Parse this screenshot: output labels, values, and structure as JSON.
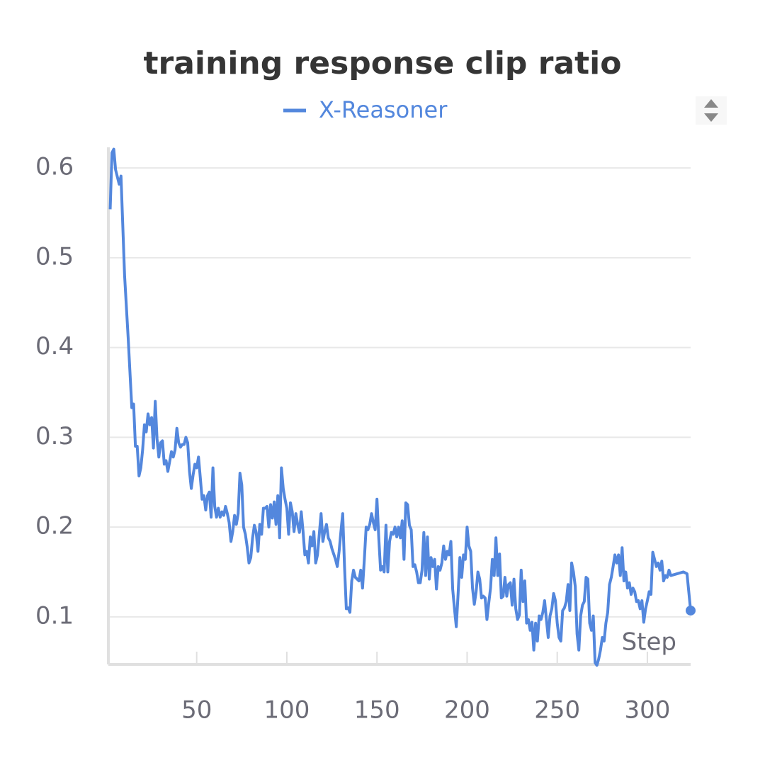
{
  "chart_data": {
    "type": "line",
    "title": "training response clip ratio",
    "x_label": "Step",
    "x": [
      2,
      3,
      4,
      5,
      6,
      7,
      8,
      10,
      12,
      14,
      15,
      16,
      17,
      18,
      19,
      20,
      21,
      22,
      23,
      24,
      25,
      26,
      27,
      28,
      29,
      30,
      31,
      32,
      33,
      34,
      35,
      36,
      37,
      38,
      39,
      40,
      41,
      42,
      43,
      44,
      45,
      46,
      47,
      48,
      49,
      50,
      51,
      52,
      53,
      54,
      55,
      56,
      57,
      58,
      59,
      60,
      61,
      62,
      63,
      64,
      65,
      66,
      67,
      68,
      69,
      70,
      71,
      72,
      73,
      74,
      75,
      76,
      77,
      78,
      79,
      80,
      81,
      82,
      83,
      84,
      85,
      86,
      87,
      88,
      89,
      90,
      91,
      92,
      93,
      94,
      95,
      96,
      97,
      98,
      99,
      100,
      101,
      102,
      103,
      104,
      105,
      106,
      107,
      108,
      109,
      110,
      111,
      112,
      113,
      114,
      115,
      116,
      117,
      118,
      119,
      120,
      121,
      122,
      123,
      124,
      125,
      126,
      127,
      128,
      129,
      130,
      131,
      132,
      133,
      134,
      135,
      136,
      137,
      138,
      139,
      140,
      141,
      142,
      143,
      144,
      145,
      146,
      147,
      148,
      149,
      150,
      151,
      152,
      153,
      154,
      155,
      156,
      157,
      158,
      159,
      160,
      161,
      162,
      163,
      164,
      165,
      166,
      167,
      168,
      169,
      170,
      171,
      172,
      173,
      174,
      175,
      176,
      177,
      178,
      179,
      180,
      181,
      182,
      183,
      184,
      185,
      186,
      187,
      188,
      189,
      190,
      191,
      192,
      193,
      194,
      195,
      196,
      197,
      198,
      199,
      200,
      201,
      202,
      203,
      204,
      205,
      206,
      207,
      208,
      209,
      210,
      211,
      212,
      213,
      214,
      215,
      216,
      217,
      218,
      219,
      220,
      221,
      222,
      223,
      224,
      225,
      226,
      227,
      228,
      229,
      230,
      231,
      232,
      233,
      234,
      235,
      236,
      237,
      238,
      239,
      240,
      241,
      242,
      243,
      244,
      245,
      246,
      247,
      248,
      249,
      250,
      251,
      252,
      253,
      254,
      255,
      256,
      257,
      258,
      259,
      260,
      261,
      262,
      263,
      264,
      265,
      266,
      267,
      268,
      269,
      270,
      271,
      272,
      273,
      274,
      275,
      276,
      277,
      278,
      279,
      280,
      281,
      282,
      283,
      284,
      285,
      286,
      287,
      288,
      289,
      290,
      291,
      292,
      293,
      294,
      295,
      296,
      297,
      298,
      299,
      300,
      301,
      302,
      303,
      304,
      305,
      306,
      307,
      308,
      309,
      310,
      311,
      312,
      313,
      320,
      322,
      324
    ],
    "series": [
      {
        "name": "X-Reasoner",
        "color": "#5387dd",
        "values": [
          0.554,
          0.617,
          0.621,
          0.598,
          0.59,
          0.582,
          0.591,
          0.48,
          0.41,
          0.333,
          0.337,
          0.29,
          0.29,
          0.257,
          0.266,
          0.286,
          0.314,
          0.306,
          0.326,
          0.314,
          0.322,
          0.288,
          0.34,
          0.298,
          0.278,
          0.294,
          0.296,
          0.27,
          0.274,
          0.262,
          0.273,
          0.284,
          0.278,
          0.286,
          0.31,
          0.294,
          0.289,
          0.292,
          0.292,
          0.3,
          0.294,
          0.262,
          0.243,
          0.258,
          0.27,
          0.266,
          0.278,
          0.255,
          0.231,
          0.235,
          0.219,
          0.235,
          0.239,
          0.211,
          0.266,
          0.223,
          0.211,
          0.221,
          0.211,
          0.217,
          0.213,
          0.223,
          0.215,
          0.205,
          0.184,
          0.195,
          0.213,
          0.203,
          0.215,
          0.26,
          0.247,
          0.2,
          0.192,
          0.178,
          0.16,
          0.166,
          0.188,
          0.202,
          0.194,
          0.173,
          0.203,
          0.192,
          0.221,
          0.221,
          0.223,
          0.2,
          0.225,
          0.21,
          0.228,
          0.203,
          0.235,
          0.188,
          0.266,
          0.243,
          0.231,
          0.221,
          0.192,
          0.227,
          0.217,
          0.195,
          0.215,
          0.203,
          0.194,
          0.217,
          0.195,
          0.169,
          0.173,
          0.16,
          0.189,
          0.179,
          0.195,
          0.16,
          0.169,
          0.192,
          0.215,
          0.184,
          0.195,
          0.203,
          0.188,
          0.184,
          0.176,
          0.17,
          0.164,
          0.156,
          0.173,
          0.195,
          0.215,
          0.156,
          0.109,
          0.11,
          0.105,
          0.14,
          0.152,
          0.144,
          0.142,
          0.14,
          0.152,
          0.132,
          0.164,
          0.2,
          0.197,
          0.203,
          0.215,
          0.205,
          0.197,
          0.231,
          0.188,
          0.152,
          0.156,
          0.15,
          0.202,
          0.15,
          0.184,
          0.194,
          0.192,
          0.2,
          0.189,
          0.2,
          0.188,
          0.207,
          0.164,
          0.227,
          0.225,
          0.202,
          0.197,
          0.156,
          0.158,
          0.15,
          0.138,
          0.138,
          0.152,
          0.194,
          0.146,
          0.189,
          0.142,
          0.166,
          0.156,
          0.164,
          0.131,
          0.156,
          0.152,
          0.16,
          0.179,
          0.164,
          0.173,
          0.169,
          0.184,
          0.131,
          0.109,
          0.089,
          0.125,
          0.166,
          0.144,
          0.169,
          0.164,
          0.2,
          0.179,
          0.173,
          0.132,
          0.114,
          0.128,
          0.15,
          0.142,
          0.121,
          0.123,
          0.121,
          0.097,
          0.115,
          0.132,
          0.164,
          0.146,
          0.188,
          0.146,
          0.17,
          0.121,
          0.123,
          0.144,
          0.123,
          0.136,
          0.138,
          0.113,
          0.142,
          0.109,
          0.097,
          0.102,
          0.152,
          0.117,
          0.14,
          0.093,
          0.097,
          0.085,
          0.094,
          0.063,
          0.093,
          0.073,
          0.101,
          0.097,
          0.105,
          0.118,
          0.097,
          0.077,
          0.101,
          0.109,
          0.126,
          0.118,
          0.093,
          0.077,
          0.073,
          0.107,
          0.11,
          0.117,
          0.136,
          0.107,
          0.16,
          0.15,
          0.134,
          0.081,
          0.063,
          0.101,
          0.113,
          0.117,
          0.144,
          0.142,
          0.093,
          0.085,
          0.101,
          0.049,
          0.046,
          0.053,
          0.063,
          0.077,
          0.073,
          0.093,
          0.105,
          0.136,
          0.144,
          0.156,
          0.169,
          0.16,
          0.169,
          0.146,
          0.177,
          0.14,
          0.15,
          0.132,
          0.138,
          0.125,
          0.132,
          0.128,
          0.117,
          0.118,
          0.109,
          0.118,
          0.094,
          0.109,
          0.118,
          0.128,
          0.125,
          0.172,
          0.164,
          0.156,
          0.16,
          0.152,
          0.162,
          0.14,
          0.146,
          0.144,
          0.152,
          0.146,
          0.15,
          0.148,
          0.107
        ]
      }
    ],
    "xlim": [
      1,
      324
    ],
    "xticks": [
      50,
      100,
      150,
      200,
      250,
      300
    ],
    "ylim": [
      0.047,
      0.623
    ],
    "yticks": [
      0.1,
      0.2,
      0.3,
      0.4,
      0.5,
      0.6
    ],
    "grid": true
  }
}
